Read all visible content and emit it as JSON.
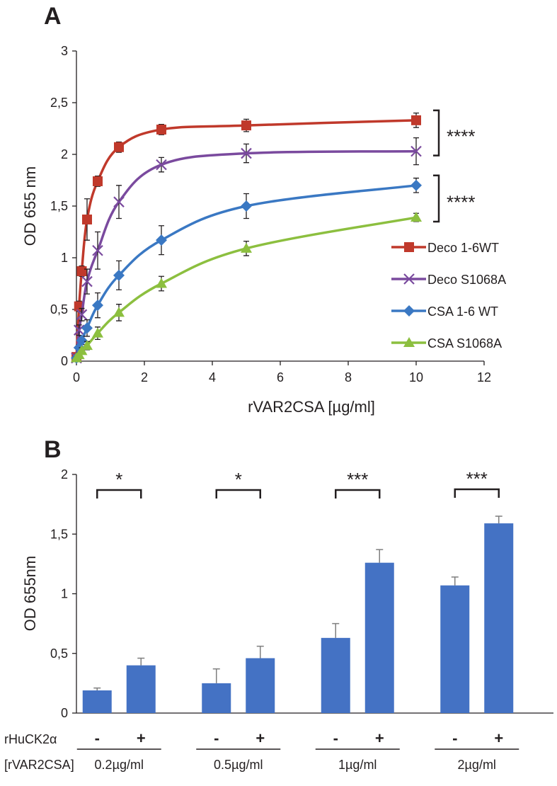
{
  "chart_data": [
    {
      "panel": "A",
      "type": "line",
      "xlabel": "rVAR2CSA [µg/ml]",
      "ylabel": "OD 655 nm",
      "xlim": [
        0,
        12
      ],
      "ylim": [
        0,
        3
      ],
      "xticks": [
        "0",
        "2",
        "4",
        "6",
        "8",
        "10",
        "12"
      ],
      "yticks": [
        "0",
        "0,5",
        "1",
        "1,5",
        "2",
        "2,5",
        "3"
      ],
      "legend_position": "right",
      "x": [
        0,
        0.078,
        0.156,
        0.3125,
        0.625,
        1.25,
        2.5,
        5,
        10
      ],
      "series": [
        {
          "name": "Deco 1-6WT",
          "marker": "square",
          "color": "#c0392b",
          "values": [
            0.04,
            0.53,
            0.87,
            1.37,
            1.74,
            2.07,
            2.24,
            2.28,
            2.33
          ],
          "errors": [
            0.01,
            0.05,
            0.05,
            0.2,
            0.05,
            0.05,
            0.05,
            0.06,
            0.07
          ]
        },
        {
          "name": "Deco S1068A",
          "marker": "x",
          "color": "#7a4a9e",
          "values": [
            0.03,
            0.3,
            0.45,
            0.77,
            1.07,
            1.54,
            1.9,
            2.01,
            2.03
          ],
          "errors": [
            0.01,
            0.05,
            0.06,
            0.12,
            0.18,
            0.16,
            0.07,
            0.09,
            0.13
          ]
        },
        {
          "name": "CSA 1-6 WT",
          "marker": "diamond",
          "color": "#3a78c3",
          "values": [
            0.03,
            0.13,
            0.2,
            0.32,
            0.54,
            0.83,
            1.17,
            1.5,
            1.7
          ],
          "errors": [
            0.01,
            0.03,
            0.04,
            0.08,
            0.12,
            0.14,
            0.14,
            0.12,
            0.07
          ]
        },
        {
          "name": "CSA S1068A",
          "marker": "triangle",
          "color": "#8cbf3f",
          "values": [
            0.03,
            0.06,
            0.1,
            0.15,
            0.27,
            0.47,
            0.75,
            1.09,
            1.39
          ],
          "errors": [
            0.01,
            0.02,
            0.03,
            0.04,
            0.06,
            0.08,
            0.07,
            0.07,
            0.04
          ]
        }
      ],
      "annotations": [
        {
          "text": "****",
          "between": [
            "Deco 1-6WT",
            "Deco S1068A"
          ]
        },
        {
          "text": "****",
          "between": [
            "CSA 1-6 WT",
            "CSA S1068A"
          ]
        }
      ]
    },
    {
      "panel": "B",
      "type": "bar",
      "ylabel": "OD 655nm",
      "ylim": [
        0,
        2
      ],
      "yticks": [
        "0",
        "0,5",
        "1",
        "1,5",
        "2"
      ],
      "row_labels": [
        "rHuCK2α",
        "[rVAR2CSA]"
      ],
      "groups": [
        {
          "label": "0.2µg/ml",
          "values": [
            0.19,
            0.4
          ],
          "errors": [
            0.02,
            0.06
          ],
          "signs": [
            "-",
            "+"
          ],
          "sig": "*"
        },
        {
          "label": "0.5µg/ml",
          "values": [
            0.25,
            0.46
          ],
          "errors": [
            0.12,
            0.1
          ],
          "signs": [
            "-",
            "+"
          ],
          "sig": "*"
        },
        {
          "label": "1µg/ml",
          "values": [
            0.63,
            1.26
          ],
          "errors": [
            0.12,
            0.11
          ],
          "signs": [
            "-",
            "+"
          ],
          "sig": "***"
        },
        {
          "label": "2µg/ml",
          "values": [
            1.07,
            1.59
          ],
          "errors": [
            0.07,
            0.06
          ],
          "signs": [
            "-",
            "+"
          ],
          "sig": "***"
        }
      ],
      "bar_color": "#4472c4"
    }
  ]
}
